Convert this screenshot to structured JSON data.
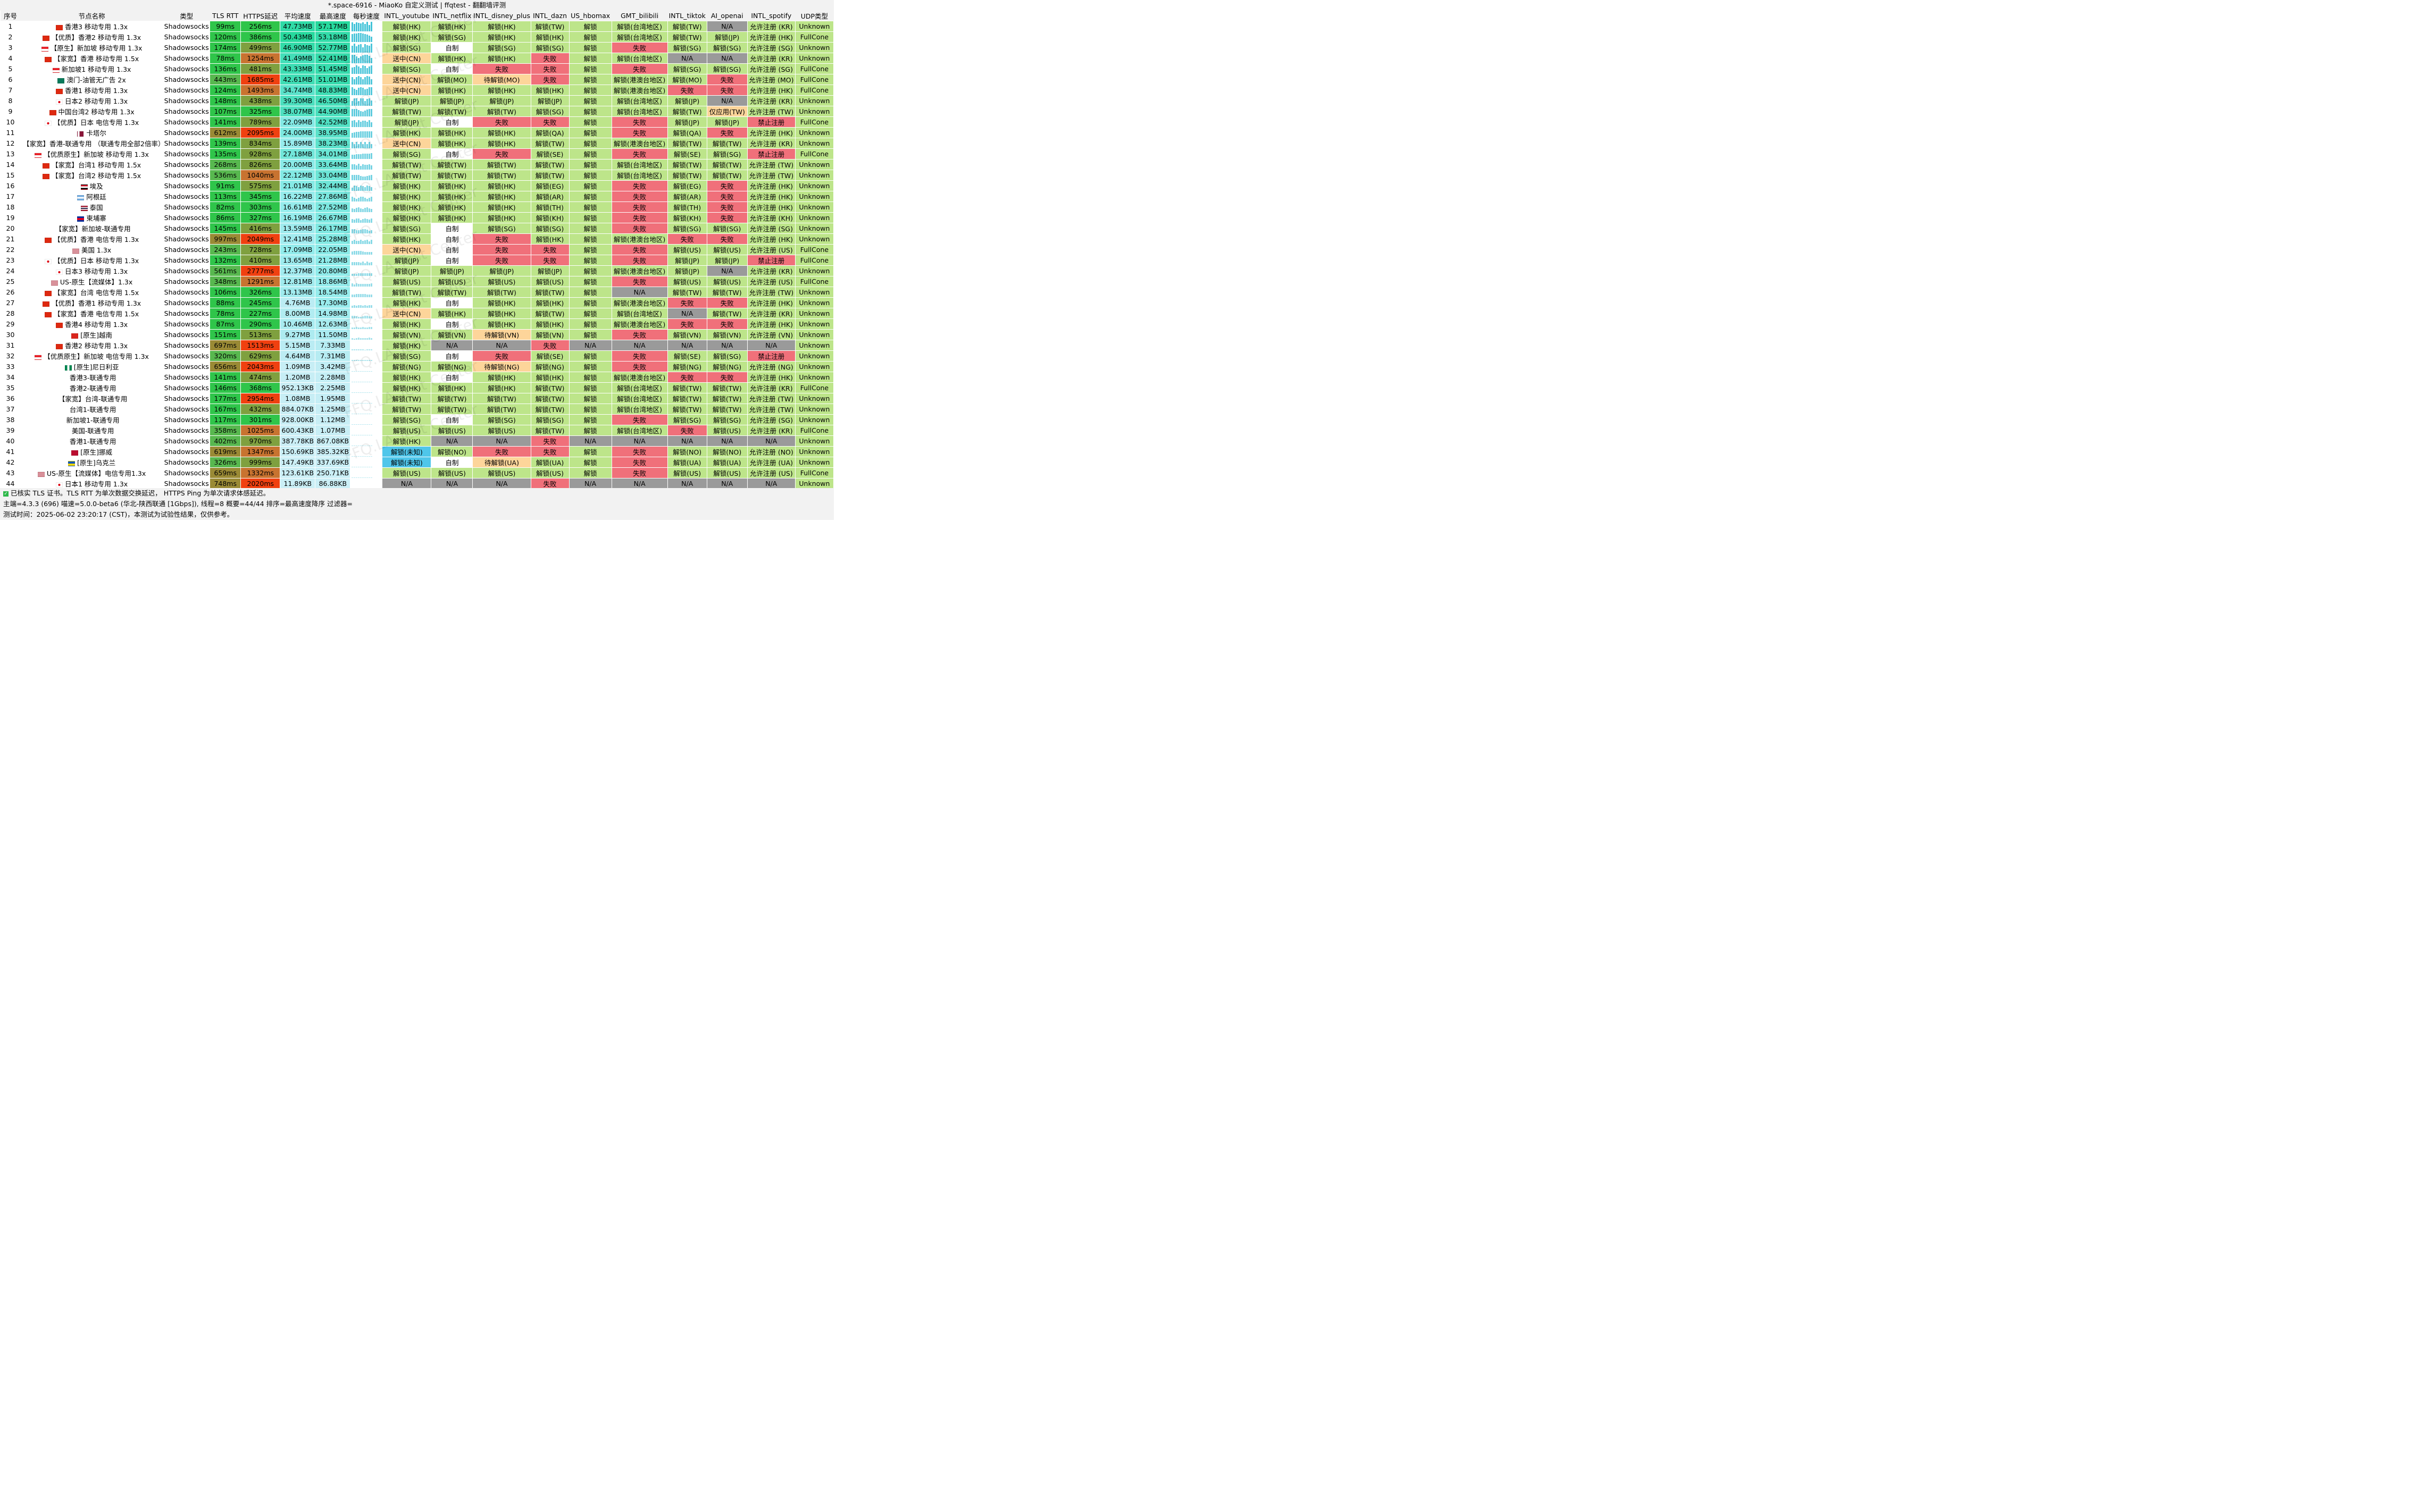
{
  "window_title": "*.space-6916 - MiaoKo 自定义测试 | ffqtest - 翻翻墙评测",
  "columns": [
    "序号",
    "节点名称",
    "类型",
    "TLS RTT",
    "HTTPS延迟",
    "平均速度",
    "最高速度",
    "每秒速度",
    "INTL_youtube",
    "INTL_netflix",
    "INTL_disney_plus",
    "INTL_dazn",
    "US_hbomax",
    "GMT_bilibili",
    "INTL_tiktok",
    "AI_openai",
    "INTL_spotify",
    "UDP类型"
  ],
  "watermark": "FFQ.LA Test Center",
  "colors": {
    "unlock": "#bde58a",
    "fail": "#f0707a",
    "pending": "#fdd59a",
    "na": "#9a9a9a",
    "self": "#ffffff",
    "unknown_region": "#4fc6ea",
    "rtt_fast": "#2fc54a",
    "rtt_mid": "#58b84f",
    "rtt_slow": "#9a8a35",
    "https_fast": "#2fc54a",
    "https_mid": "#7fa03f",
    "https_slow": "#c87330",
    "https_very_slow": "#f04010"
  },
  "rows": [
    [
      "1",
      "香港3 移动专用 1.3x",
      "Shadowsocks",
      "99ms",
      "256ms",
      "47.73MB",
      "57.17MB",
      "解锁(HK)",
      "解锁(HK)",
      "解锁(HK)",
      "解锁(TW)",
      "解锁",
      "解锁(台湾地区)",
      "解锁(TW)",
      "N/A",
      "允许注册 (KR)",
      "Unknown"
    ],
    [
      "2",
      "【优质】香港2 移动专用 1.3x",
      "Shadowsocks",
      "120ms",
      "386ms",
      "50.43MB",
      "53.18MB",
      "解锁(HK)",
      "解锁(SG)",
      "解锁(HK)",
      "解锁(HK)",
      "解锁",
      "解锁(台湾地区)",
      "解锁(TW)",
      "解锁(JP)",
      "允许注册 (HK)",
      "FullCone"
    ],
    [
      "3",
      "【原生】新加坡 移动专用 1.3x",
      "Shadowsocks",
      "174ms",
      "499ms",
      "46.90MB",
      "52.77MB",
      "解锁(SG)",
      "自制",
      "解锁(SG)",
      "解锁(SG)",
      "解锁",
      "失败",
      "解锁(SG)",
      "解锁(SG)",
      "允许注册 (SG)",
      "Unknown"
    ],
    [
      "4",
      "【家宽】香港 移动专用 1.5x",
      "Shadowsocks",
      "78ms",
      "1254ms",
      "41.49MB",
      "52.41MB",
      "送中(CN)",
      "解锁(HK)",
      "解锁(HK)",
      "失败",
      "解锁",
      "解锁(台湾地区)",
      "N/A",
      "N/A",
      "允许注册 (KR)",
      "Unknown"
    ],
    [
      "5",
      "新加坡1 移动专用 1.3x",
      "Shadowsocks",
      "136ms",
      "481ms",
      "43.33MB",
      "51.45MB",
      "解锁(SG)",
      "自制",
      "失败",
      "失败",
      "解锁",
      "失败",
      "解锁(SG)",
      "解锁(SG)",
      "允许注册 (SG)",
      "FullCone"
    ],
    [
      "6",
      "澳门-油管无广告 2x",
      "Shadowsocks",
      "443ms",
      "1685ms",
      "42.61MB",
      "51.01MB",
      "送中(CN)",
      "解锁(MO)",
      "待解锁(MO)",
      "失败",
      "解锁",
      "解锁(港澳台地区)",
      "解锁(MO)",
      "失败",
      "允许注册 (MO)",
      "FullCone"
    ],
    [
      "7",
      "香港1 移动专用 1.3x",
      "Shadowsocks",
      "124ms",
      "1493ms",
      "34.74MB",
      "48.83MB",
      "送中(CN)",
      "解锁(HK)",
      "解锁(HK)",
      "解锁(HK)",
      "解锁",
      "解锁(港澳台地区)",
      "失败",
      "失败",
      "允许注册 (HK)",
      "FullCone"
    ],
    [
      "8",
      "日本2 移动专用 1.3x",
      "Shadowsocks",
      "148ms",
      "438ms",
      "39.30MB",
      "46.50MB",
      "解锁(JP)",
      "解锁(JP)",
      "解锁(JP)",
      "解锁(JP)",
      "解锁",
      "解锁(台湾地区)",
      "解锁(JP)",
      "N/A",
      "允许注册 (KR)",
      "Unknown"
    ],
    [
      "9",
      "中国台湾2 移动专用 1.3x",
      "Shadowsocks",
      "107ms",
      "325ms",
      "38.07MB",
      "44.90MB",
      "解锁(TW)",
      "解锁(TW)",
      "解锁(TW)",
      "解锁(SG)",
      "解锁",
      "解锁(台湾地区)",
      "解锁(TW)",
      "仅应用(TW)",
      "允许注册 (TW)",
      "Unknown"
    ],
    [
      "10",
      "【优质】日本 电信专用 1.3x",
      "Shadowsocks",
      "141ms",
      "789ms",
      "22.09MB",
      "42.52MB",
      "解锁(JP)",
      "自制",
      "失败",
      "失败",
      "解锁",
      "失败",
      "解锁(JP)",
      "解锁(JP)",
      "禁止注册",
      "FullCone"
    ],
    [
      "11",
      "卡塔尔",
      "Shadowsocks",
      "612ms",
      "2095ms",
      "24.00MB",
      "38.95MB",
      "解锁(HK)",
      "解锁(HK)",
      "解锁(HK)",
      "解锁(QA)",
      "解锁",
      "失败",
      "解锁(QA)",
      "失败",
      "允许注册 (HK)",
      "Unknown"
    ],
    [
      "12",
      "【家宽】香港-联通专用 （联通专用全部2倍率）",
      "Shadowsocks",
      "139ms",
      "834ms",
      "15.89MB",
      "38.23MB",
      "送中(CN)",
      "解锁(HK)",
      "解锁(HK)",
      "解锁(TW)",
      "解锁",
      "解锁(港澳台地区)",
      "解锁(TW)",
      "解锁(TW)",
      "允许注册 (KR)",
      "Unknown"
    ],
    [
      "13",
      "【优质原生】新加坡 移动专用 1.3x",
      "Shadowsocks",
      "135ms",
      "928ms",
      "27.18MB",
      "34.01MB",
      "解锁(SG)",
      "自制",
      "失败",
      "解锁(SE)",
      "解锁",
      "失败",
      "解锁(SE)",
      "解锁(SG)",
      "禁止注册",
      "FullCone"
    ],
    [
      "14",
      "【家宽】台湾1 移动专用 1.5x",
      "Shadowsocks",
      "268ms",
      "826ms",
      "20.00MB",
      "33.64MB",
      "解锁(TW)",
      "解锁(TW)",
      "解锁(TW)",
      "解锁(TW)",
      "解锁",
      "解锁(台湾地区)",
      "解锁(TW)",
      "解锁(TW)",
      "允许注册 (TW)",
      "Unknown"
    ],
    [
      "15",
      "【家宽】台湾2 移动专用 1.5x",
      "Shadowsocks",
      "536ms",
      "1040ms",
      "22.12MB",
      "33.04MB",
      "解锁(TW)",
      "解锁(TW)",
      "解锁(TW)",
      "解锁(TW)",
      "解锁",
      "解锁(台湾地区)",
      "解锁(TW)",
      "解锁(TW)",
      "允许注册 (TW)",
      "Unknown"
    ],
    [
      "16",
      "埃及",
      "Shadowsocks",
      "91ms",
      "575ms",
      "21.01MB",
      "32.44MB",
      "解锁(HK)",
      "解锁(HK)",
      "解锁(HK)",
      "解锁(EG)",
      "解锁",
      "失败",
      "解锁(EG)",
      "失败",
      "允许注册 (HK)",
      "Unknown"
    ],
    [
      "17",
      "阿根廷",
      "Shadowsocks",
      "113ms",
      "345ms",
      "16.22MB",
      "27.86MB",
      "解锁(HK)",
      "解锁(HK)",
      "解锁(HK)",
      "解锁(AR)",
      "解锁",
      "失败",
      "解锁(AR)",
      "失败",
      "允许注册 (HK)",
      "Unknown"
    ],
    [
      "18",
      "泰国",
      "Shadowsocks",
      "82ms",
      "303ms",
      "16.61MB",
      "27.52MB",
      "解锁(HK)",
      "解锁(HK)",
      "解锁(HK)",
      "解锁(TH)",
      "解锁",
      "失败",
      "解锁(TH)",
      "失败",
      "允许注册 (HK)",
      "Unknown"
    ],
    [
      "19",
      "柬埔寨",
      "Shadowsocks",
      "86ms",
      "327ms",
      "16.19MB",
      "26.67MB",
      "解锁(HK)",
      "解锁(HK)",
      "解锁(HK)",
      "解锁(KH)",
      "解锁",
      "失败",
      "解锁(KH)",
      "失败",
      "允许注册 (KH)",
      "Unknown"
    ],
    [
      "20",
      "【家宽】新加坡-联通专用",
      "Shadowsocks",
      "145ms",
      "416ms",
      "13.59MB",
      "26.17MB",
      "解锁(SG)",
      "自制",
      "解锁(SG)",
      "解锁(SG)",
      "解锁",
      "失败",
      "解锁(SG)",
      "解锁(SG)",
      "允许注册 (SG)",
      "Unknown"
    ],
    [
      "21",
      "【优质】香港 电信专用 1.3x",
      "Shadowsocks",
      "997ms",
      "2049ms",
      "12.41MB",
      "25.28MB",
      "解锁(HK)",
      "自制",
      "失败",
      "解锁(HK)",
      "解锁",
      "解锁(港澳台地区)",
      "失败",
      "失败",
      "允许注册 (HK)",
      "Unknown"
    ],
    [
      "22",
      "美国 1.3x",
      "Shadowsocks",
      "243ms",
      "728ms",
      "17.09MB",
      "22.05MB",
      "送中(CN)",
      "自制",
      "失败",
      "失败",
      "解锁",
      "失败",
      "解锁(US)",
      "解锁(US)",
      "允许注册 (US)",
      "FullCone"
    ],
    [
      "23",
      "【优质】日本 移动专用 1.3x",
      "Shadowsocks",
      "132ms",
      "410ms",
      "13.65MB",
      "21.28MB",
      "解锁(JP)",
      "自制",
      "失败",
      "失败",
      "解锁",
      "失败",
      "解锁(JP)",
      "解锁(JP)",
      "禁止注册",
      "FullCone"
    ],
    [
      "24",
      "日本3 移动专用 1.3x",
      "Shadowsocks",
      "561ms",
      "2777ms",
      "12.37MB",
      "20.80MB",
      "解锁(JP)",
      "解锁(JP)",
      "解锁(JP)",
      "解锁(JP)",
      "解锁",
      "解锁(港澳台地区)",
      "解锁(JP)",
      "N/A",
      "允许注册 (KR)",
      "Unknown"
    ],
    [
      "25",
      "US-原生【流媒体】1.3x",
      "Shadowsocks",
      "348ms",
      "1291ms",
      "12.81MB",
      "18.86MB",
      "解锁(US)",
      "解锁(US)",
      "解锁(US)",
      "解锁(US)",
      "解锁",
      "失败",
      "解锁(US)",
      "解锁(US)",
      "允许注册 (US)",
      "FullCone"
    ],
    [
      "26",
      "【家宽】台湾 电信专用 1.5x",
      "Shadowsocks",
      "106ms",
      "326ms",
      "13.13MB",
      "18.54MB",
      "解锁(TW)",
      "解锁(TW)",
      "解锁(TW)",
      "解锁(TW)",
      "解锁",
      "N/A",
      "解锁(TW)",
      "解锁(TW)",
      "允许注册 (TW)",
      "Unknown"
    ],
    [
      "27",
      "【优质】香港1 移动专用 1.3x",
      "Shadowsocks",
      "88ms",
      "245ms",
      "4.76MB",
      "17.30MB",
      "解锁(HK)",
      "自制",
      "解锁(HK)",
      "解锁(HK)",
      "解锁",
      "解锁(港澳台地区)",
      "失败",
      "失败",
      "允许注册 (HK)",
      "Unknown"
    ],
    [
      "28",
      "【家宽】香港 电信专用 1.5x",
      "Shadowsocks",
      "78ms",
      "227ms",
      "8.00MB",
      "14.98MB",
      "送中(CN)",
      "解锁(HK)",
      "解锁(HK)",
      "解锁(TW)",
      "解锁",
      "解锁(台湾地区)",
      "N/A",
      "解锁(TW)",
      "允许注册 (KR)",
      "Unknown"
    ],
    [
      "29",
      "香港4 移动专用 1.3x",
      "Shadowsocks",
      "87ms",
      "290ms",
      "10.46MB",
      "12.63MB",
      "解锁(HK)",
      "自制",
      "解锁(HK)",
      "解锁(HK)",
      "解锁",
      "解锁(港澳台地区)",
      "失败",
      "失败",
      "允许注册 (HK)",
      "Unknown"
    ],
    [
      "30",
      "[原生]越南",
      "Shadowsocks",
      "151ms",
      "513ms",
      "9.27MB",
      "11.50MB",
      "解锁(VN)",
      "解锁(VN)",
      "待解锁(VN)",
      "解锁(VN)",
      "解锁",
      "失败",
      "解锁(VN)",
      "解锁(VN)",
      "允许注册 (VN)",
      "Unknown"
    ],
    [
      "31",
      "香港2 移动专用 1.3x",
      "Shadowsocks",
      "697ms",
      "1513ms",
      "5.15MB",
      "7.33MB",
      "解锁(HK)",
      "N/A",
      "N/A",
      "失败",
      "N/A",
      "N/A",
      "N/A",
      "N/A",
      "N/A",
      "Unknown"
    ],
    [
      "32",
      "【优质原生】新加坡 电信专用 1.3x",
      "Shadowsocks",
      "320ms",
      "629ms",
      "4.64MB",
      "7.31MB",
      "解锁(SG)",
      "自制",
      "失败",
      "解锁(SE)",
      "解锁",
      "失败",
      "解锁(SE)",
      "解锁(SG)",
      "禁止注册",
      "Unknown"
    ],
    [
      "33",
      "[原生]尼日利亚",
      "Shadowsocks",
      "656ms",
      "2043ms",
      "1.09MB",
      "3.42MB",
      "解锁(NG)",
      "解锁(NG)",
      "待解锁(NG)",
      "解锁(NG)",
      "解锁",
      "失败",
      "解锁(NG)",
      "解锁(NG)",
      "允许注册 (NG)",
      "Unknown"
    ],
    [
      "34",
      "香港3-联通专用",
      "Shadowsocks",
      "141ms",
      "474ms",
      "1.20MB",
      "2.28MB",
      "解锁(HK)",
      "自制",
      "解锁(HK)",
      "解锁(HK)",
      "解锁",
      "解锁(港澳台地区)",
      "失败",
      "失败",
      "允许注册 (HK)",
      "Unknown"
    ],
    [
      "35",
      "香港2-联通专用",
      "Shadowsocks",
      "146ms",
      "368ms",
      "952.13KB",
      "2.25MB",
      "解锁(HK)",
      "解锁(HK)",
      "解锁(HK)",
      "解锁(TW)",
      "解锁",
      "解锁(台湾地区)",
      "解锁(TW)",
      "解锁(TW)",
      "允许注册 (KR)",
      "FullCone"
    ],
    [
      "36",
      "【家宽】台湾-联通专用",
      "Shadowsocks",
      "177ms",
      "2954ms",
      "1.08MB",
      "1.95MB",
      "解锁(TW)",
      "解锁(TW)",
      "解锁(TW)",
      "解锁(TW)",
      "解锁",
      "解锁(台湾地区)",
      "解锁(TW)",
      "解锁(TW)",
      "允许注册 (TW)",
      "Unknown"
    ],
    [
      "37",
      "台湾1-联通专用",
      "Shadowsocks",
      "167ms",
      "432ms",
      "884.07KB",
      "1.25MB",
      "解锁(TW)",
      "解锁(TW)",
      "解锁(TW)",
      "解锁(TW)",
      "解锁",
      "解锁(台湾地区)",
      "解锁(TW)",
      "解锁(TW)",
      "允许注册 (TW)",
      "Unknown"
    ],
    [
      "38",
      "新加坡1-联通专用",
      "Shadowsocks",
      "117ms",
      "301ms",
      "928.00KB",
      "1.12MB",
      "解锁(SG)",
      "自制",
      "解锁(SG)",
      "解锁(SG)",
      "解锁",
      "失败",
      "解锁(SG)",
      "解锁(SG)",
      "允许注册 (SG)",
      "Unknown"
    ],
    [
      "39",
      "美国-联通专用",
      "Shadowsocks",
      "358ms",
      "1025ms",
      "600.43KB",
      "1.07MB",
      "解锁(US)",
      "解锁(US)",
      "解锁(US)",
      "解锁(TW)",
      "解锁",
      "解锁(台湾地区)",
      "失败",
      "解锁(US)",
      "允许注册 (KR)",
      "FullCone"
    ],
    [
      "40",
      "香港1-联通专用",
      "Shadowsocks",
      "402ms",
      "970ms",
      "387.78KB",
      "867.08KB",
      "解锁(HK)",
      "N/A",
      "N/A",
      "失败",
      "N/A",
      "N/A",
      "N/A",
      "N/A",
      "N/A",
      "Unknown"
    ],
    [
      "41",
      "[原生]挪威",
      "Shadowsocks",
      "619ms",
      "1347ms",
      "150.69KB",
      "385.32KB",
      "解锁(未知)",
      "解锁(NO)",
      "失败",
      "失败",
      "解锁",
      "失败",
      "解锁(NO)",
      "解锁(NO)",
      "允许注册 (NO)",
      "Unknown"
    ],
    [
      "42",
      "[原生]乌克兰",
      "Shadowsocks",
      "326ms",
      "999ms",
      "147.49KB",
      "337.69KB",
      "解锁(未知)",
      "自制",
      "待解锁(UA)",
      "解锁(UA)",
      "解锁",
      "失败",
      "解锁(UA)",
      "解锁(UA)",
      "允许注册 (UA)",
      "Unknown"
    ],
    [
      "43",
      "US-原生【流媒体】电信专用1.3x",
      "Shadowsocks",
      "659ms",
      "1332ms",
      "123.61KB",
      "250.71KB",
      "解锁(US)",
      "解锁(US)",
      "解锁(US)",
      "解锁(US)",
      "解锁",
      "失败",
      "解锁(US)",
      "解锁(US)",
      "允许注册 (US)",
      "FullCone"
    ],
    [
      "44",
      "日本1 移动专用 1.3x",
      "Shadowsocks",
      "748ms",
      "2020ms",
      "11.89KB",
      "86.88KB",
      "N/A",
      "N/A",
      "N/A",
      "失败",
      "N/A",
      "N/A",
      "N/A",
      "N/A",
      "N/A",
      "Unknown"
    ]
  ],
  "flags": [
    "hk",
    "hk",
    "sg",
    "hk",
    "sg",
    "mo",
    "hk",
    "jp",
    "cn",
    "jp",
    "qa",
    "",
    "sg",
    "cn",
    "cn",
    "eg",
    "ar",
    "th",
    "kh",
    "",
    "hk",
    "us",
    "jp",
    "jp",
    "us",
    "cn",
    "hk",
    "hk",
    "hk",
    "vn",
    "hk",
    "sg",
    "ng",
    "",
    "",
    "",
    "",
    "",
    "",
    "",
    "no",
    "ua",
    "us",
    "jp"
  ],
  "footer": {
    "line1": "已核实 TLS 证书。TLS RTT 为单次数据交换延迟， HTTPS Ping 为单次请求体感延迟。",
    "line2": "主端=4.3.3 (696) 喵速=5.0.0-beta6 (华北-陕西联通 [1Gbps]), 线程=8 概要=44/44 排序=最高速度降序 过滤器=",
    "line3": "测试时间：2025-06-02 23:20:17 (CST)，本测试为试验性结果，仅供参考。"
  }
}
